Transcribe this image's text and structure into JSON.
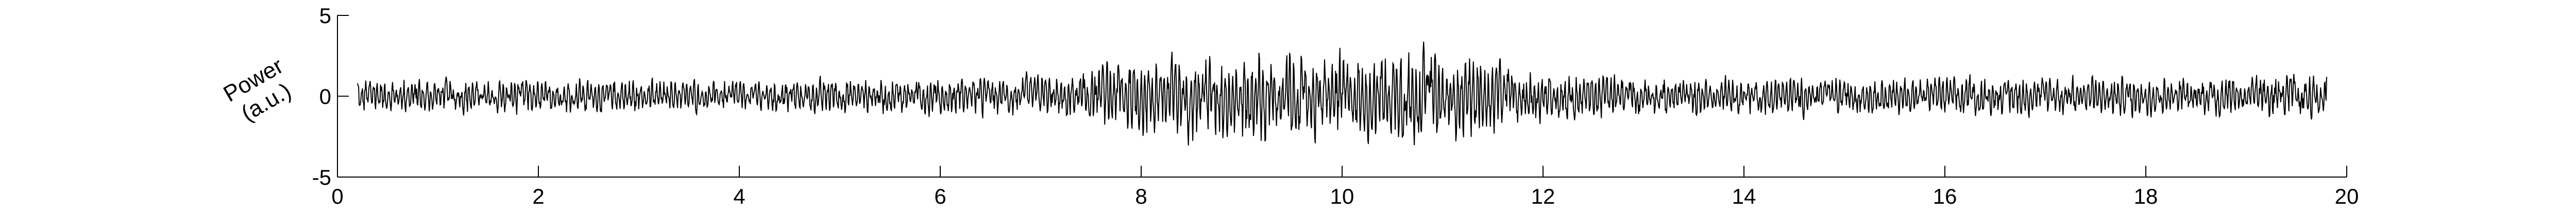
{
  "chart_data": {
    "type": "line",
    "title": "",
    "xlabel": "",
    "ylabel": [
      "Power",
      "(a.u.)"
    ],
    "xlim": [
      0,
      20
    ],
    "ylim": [
      -5,
      5
    ],
    "xticks": [
      0,
      2,
      4,
      6,
      8,
      10,
      12,
      14,
      16,
      18,
      20
    ],
    "yticks": [
      -5,
      0,
      5
    ],
    "xtick_labels": [
      "0",
      "2",
      "4",
      "6",
      "8",
      "10",
      "12",
      "14",
      "16",
      "18",
      "20"
    ],
    "ytick_labels": [
      "-5",
      "0",
      "5"
    ],
    "grid": false,
    "legend": "none",
    "line_color": "#000000",
    "series": [
      {
        "x": [
          0.2,
          19.8
        ],
        "y": [
          0.8,
          1.2
        ],
        "envelope": [
          {
            "x": 0.2,
            "amp": 1.6
          },
          {
            "x": 2.0,
            "amp": 1.5
          },
          {
            "x": 4.0,
            "amp": 1.4
          },
          {
            "x": 6.0,
            "amp": 1.6
          },
          {
            "x": 7.2,
            "amp": 1.9
          },
          {
            "x": 8.0,
            "amp": 3.4
          },
          {
            "x": 9.0,
            "amp": 4.0
          },
          {
            "x": 10.0,
            "amp": 3.7
          },
          {
            "x": 11.0,
            "amp": 3.9
          },
          {
            "x": 12.0,
            "amp": 2.2
          },
          {
            "x": 13.0,
            "amp": 1.7
          },
          {
            "x": 14.0,
            "amp": 1.6
          },
          {
            "x": 16.0,
            "amp": 1.6
          },
          {
            "x": 18.0,
            "amp": 1.7
          },
          {
            "x": 19.8,
            "amp": 1.9
          }
        ]
      }
    ]
  }
}
